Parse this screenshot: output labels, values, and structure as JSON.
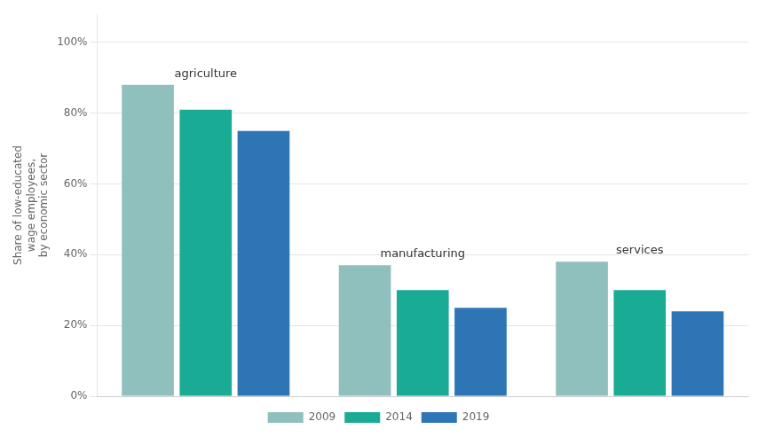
{
  "chart_data": {
    "type": "bar",
    "ylabel": "Share of low-educated\nwage employees,\nby economic sector",
    "categories": [
      "agriculture",
      "manufacturing",
      "services"
    ],
    "series": [
      {
        "name": "2009",
        "color": "#8fc0be",
        "values": [
          0.88,
          0.37,
          0.38
        ]
      },
      {
        "name": "2014",
        "color": "#1aab95",
        "values": [
          0.81,
          0.3,
          0.3
        ]
      },
      {
        "name": "2019",
        "color": "#2e75b6",
        "values": [
          0.75,
          0.25,
          0.24
        ]
      }
    ],
    "ylim": [
      0,
      1.08
    ],
    "yticks": [
      {
        "value": 0.0,
        "label": "0%"
      },
      {
        "value": 0.2,
        "label": "20%"
      },
      {
        "value": 0.4,
        "label": "40%"
      },
      {
        "value": 0.6,
        "label": "60%"
      },
      {
        "value": 0.8,
        "label": "80%"
      },
      {
        "value": 1.0,
        "label": "100%"
      }
    ],
    "grid": true,
    "legend": "bottom",
    "tick_labels": "y"
  }
}
